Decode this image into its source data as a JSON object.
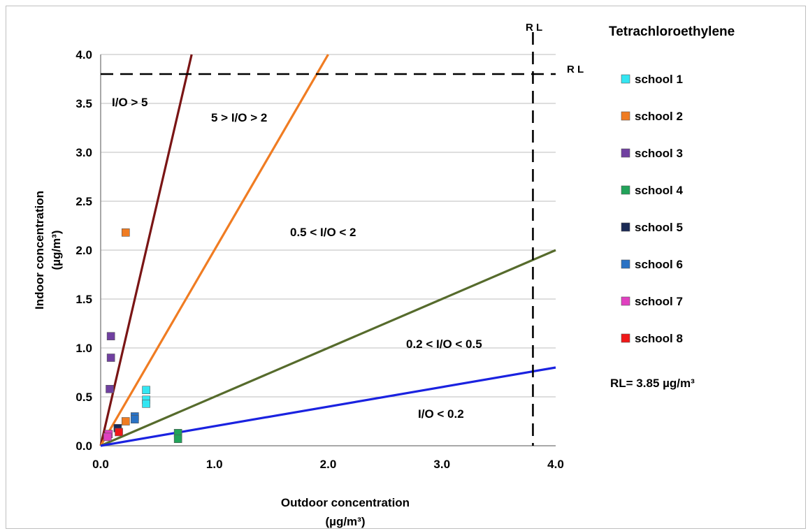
{
  "chart_data": {
    "type": "scatter",
    "title": "Tetrachloroethylene",
    "xlabel": "Outdoor concentration",
    "xlabel_unit": "(µg/m³)",
    "ylabel": "Indoor concentration",
    "ylabel_unit": "(µg/m³)",
    "xlim": [
      0,
      4
    ],
    "ylim": [
      0,
      4
    ],
    "x_ticks": [
      "0.0",
      "1.0",
      "2.0",
      "3.0",
      "4.0"
    ],
    "y_ticks": [
      "0.0",
      "0.5",
      "1.0",
      "1.5",
      "2.0",
      "2.5",
      "3.0",
      "3.5",
      "4.0"
    ],
    "grid": "horizontal",
    "legend_position": "right",
    "series": [
      {
        "name": "school 1",
        "color": "#33e6f2",
        "points": [
          [
            0.4,
            0.57
          ],
          [
            0.4,
            0.47
          ],
          [
            0.4,
            0.43
          ]
        ]
      },
      {
        "name": "school 2",
        "color": "#f07c22",
        "points": [
          [
            0.22,
            2.18
          ],
          [
            0.22,
            0.25
          ]
        ]
      },
      {
        "name": "school 3",
        "color": "#7040a0",
        "points": [
          [
            0.09,
            1.12
          ],
          [
            0.09,
            0.9
          ],
          [
            0.08,
            0.58
          ]
        ]
      },
      {
        "name": "school 4",
        "color": "#22a35a",
        "points": [
          [
            0.68,
            0.13
          ],
          [
            0.68,
            0.07
          ]
        ]
      },
      {
        "name": "school 5",
        "color": "#1a2a55",
        "points": [
          [
            0.15,
            0.18
          ]
        ]
      },
      {
        "name": "school 6",
        "color": "#2a72c4",
        "points": [
          [
            0.3,
            0.3
          ],
          [
            0.3,
            0.27
          ]
        ]
      },
      {
        "name": "school 7",
        "color": "#e040c0",
        "points": [
          [
            0.07,
            0.12
          ],
          [
            0.06,
            0.09
          ]
        ]
      },
      {
        "name": "school 8",
        "color": "#f01818",
        "points": [
          [
            0.16,
            0.14
          ]
        ]
      }
    ],
    "ratio_lines": [
      {
        "ratio": 5,
        "color": "#7a1515"
      },
      {
        "ratio": 2,
        "color": "#f07c22"
      },
      {
        "ratio": 0.5,
        "color": "#566b2c"
      },
      {
        "ratio": 0.2,
        "color": "#1a22e0"
      }
    ],
    "reference_lines": {
      "x": 3.8,
      "y": 3.8,
      "label": "R L"
    },
    "regions": [
      "I/O > 5",
      "5 > I/O > 2",
      "0.5 < I/O < 2",
      "0.2 < I/O < 0.5",
      "I/O < 0.2"
    ],
    "rl_note": "RL= 3.85 µg/m³"
  }
}
